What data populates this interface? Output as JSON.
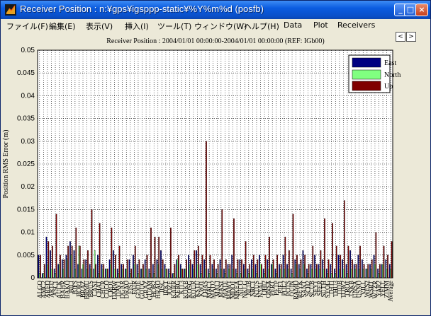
{
  "window": {
    "title": "Receiver Position : n:¥gps¥igsppp-static¥%Y%m%d (posfb)",
    "controls": {
      "minimize": "_",
      "maximize": "□",
      "close": "×"
    }
  },
  "menu": [
    {
      "label": "ファイル(F)"
    },
    {
      "label": "編集(E)"
    },
    {
      "label": "表示(V)"
    },
    {
      "label": "挿入(I)"
    },
    {
      "label": "ツール(T)"
    },
    {
      "label": "ウィンドウ(W)"
    },
    {
      "label": "ヘルプ(H)"
    },
    {
      "label": "Data"
    },
    {
      "label": "Plot"
    },
    {
      "label": "Receivers"
    }
  ],
  "nav": {
    "prev": "<",
    "next": ">"
  },
  "chart_data": {
    "type": "bar",
    "title": "Receiver Position : 2004/01/01 00:00:00-2004/01/01 00:00:00 (REF: IGb00)",
    "ylabel": "Position RMS Error (m)",
    "xlabel": "",
    "ylim": [
      0,
      0.05
    ],
    "yticks": [
      "0",
      "0.005",
      "0.01",
      "0.015",
      "0.02",
      "0.025",
      "0.03",
      "0.035",
      "0.04",
      "0.045",
      "0.05"
    ],
    "grid": true,
    "legend_position": "top-right",
    "categories": [
      "ALGO",
      "AMC2",
      "AREQ",
      "ARTU",
      "ASC1",
      "AUCK",
      "BAHR",
      "BAKO",
      "BILI",
      "BJFS",
      "BOR1",
      "BRAZ",
      "BRMU",
      "BRUS",
      "CAS1",
      "CHAT",
      "CHUR",
      "COCO",
      "CRO1",
      "DARW",
      "DAV1",
      "DGAR",
      "DRAO",
      "EISL",
      "FAIR",
      "GODE",
      "GOUG",
      "GRAZ",
      "GUAM",
      "HOB2",
      "HRAO",
      "IISC",
      "IRKT",
      "JOZE",
      "KARR",
      "KERG",
      "KIT3",
      "KOKB",
      "KOSG",
      "KOUR",
      "KSTU",
      "KWJ1",
      "LHAS",
      "MAC1",
      "MAD2",
      "MALI",
      "MAS1",
      "MATE",
      "MAW1",
      "MDO1",
      "MKEA",
      "NICO",
      "NKLG",
      "NLIB",
      "NRC1",
      "NTUS",
      "NYAL",
      "OHI2",
      "ONSA",
      "PERT",
      "PETP",
      "PIE1",
      "POL2",
      "POTS",
      "QUIN",
      "RAMO",
      "REYK",
      "SANT",
      "SCH2",
      "SCUB",
      "SEY1",
      "SFER",
      "SUTH",
      "SYOG",
      "THTI",
      "THU3",
      "TIDB",
      "TOW2",
      "TRO1",
      "TSKB",
      "UNSA",
      "USNO",
      "VILL",
      "WES2",
      "WSRT",
      "WTZR",
      "YAR2",
      "YELL",
      "ZIMM",
      "Average"
    ],
    "series": [
      {
        "name": "East",
        "color": "#000080",
        "values": [
          0.005,
          0.001,
          0.009,
          0.006,
          0.002,
          0.003,
          0.004,
          0.005,
          0.008,
          0.006,
          0.003,
          0.002,
          0.004,
          0.003,
          0.002,
          0.005,
          0.003,
          0.002,
          0.004,
          0.006,
          0.002,
          0.003,
          0.002,
          0.004,
          0.005,
          0.003,
          0.002,
          0.004,
          0.002,
          0.003,
          0.004,
          0.006,
          0.003,
          0.002,
          0.001,
          0.004,
          0.003,
          0.002,
          0.005,
          0.003,
          0.006,
          0.003,
          0.004,
          0.002,
          0.003,
          0.002,
          0.004,
          0.002,
          0.003,
          0.005,
          0.002,
          0.004,
          0.003,
          0.002,
          0.004,
          0.003,
          0.005,
          0.002,
          0.004,
          0.003,
          0.002,
          0.003,
          0.005,
          0.003,
          0.002,
          0.004,
          0.003,
          0.006,
          0.002,
          0.003,
          0.005,
          0.003,
          0.004,
          0.002,
          0.003,
          0.002,
          0.005,
          0.004,
          0.003,
          0.006,
          0.003,
          0.005,
          0.004,
          0.002,
          0.003,
          0.005,
          0.002,
          0.003,
          0.004,
          0.003
        ]
      },
      {
        "name": "North",
        "color": "#80ff80",
        "values": [
          0.001,
          0.001,
          0.003,
          0.002,
          0.001,
          0.003,
          0.002,
          0.004,
          0.005,
          0.002,
          0.007,
          0.003,
          0.002,
          0.002,
          0.006,
          0.001,
          0.002,
          0.002,
          0.003,
          0.002,
          0.001,
          0.002,
          0.002,
          0.001,
          0.003,
          0.001,
          0.002,
          0.002,
          0.001,
          0.001,
          0.003,
          0.002,
          0.002,
          0.001,
          0.001,
          0.004,
          0.002,
          0.002,
          0.003,
          0.002,
          0.003,
          0.001,
          0.002,
          0.001,
          0.002,
          0.001,
          0.002,
          0.001,
          0.002,
          0.002,
          0.001,
          0.001,
          0.002,
          0.001,
          0.002,
          0.001,
          0.003,
          0.001,
          0.002,
          0.003,
          0.001,
          0.002,
          0.002,
          0.002,
          0.001,
          0.003,
          0.002,
          0.003,
          0.001,
          0.002,
          0.002,
          0.002,
          0.002,
          0.001,
          0.001,
          0.001,
          0.002,
          0.002,
          0.001,
          0.002,
          0.002,
          0.002,
          0.002,
          0.002,
          0.002,
          0.003,
          0.001,
          0.003,
          0.002,
          0.002
        ]
      },
      {
        "name": "Up",
        "color": "#800000",
        "values": [
          0.005,
          0.003,
          0.008,
          0.007,
          0.014,
          0.005,
          0.004,
          0.007,
          0.007,
          0.011,
          0.007,
          0.004,
          0.006,
          0.015,
          0.003,
          0.012,
          0.003,
          0.002,
          0.011,
          0.005,
          0.007,
          0.003,
          0.004,
          0.002,
          0.007,
          0.004,
          0.003,
          0.005,
          0.011,
          0.009,
          0.009,
          0.004,
          0.002,
          0.011,
          0.003,
          0.005,
          0.002,
          0.004,
          0.004,
          0.006,
          0.007,
          0.005,
          0.03,
          0.005,
          0.004,
          0.003,
          0.015,
          0.004,
          0.003,
          0.013,
          0.004,
          0.004,
          0.008,
          0.003,
          0.005,
          0.004,
          0.003,
          0.005,
          0.009,
          0.004,
          0.005,
          0.003,
          0.009,
          0.006,
          0.014,
          0.005,
          0.004,
          0.005,
          0.003,
          0.007,
          0.003,
          0.006,
          0.013,
          0.004,
          0.012,
          0.007,
          0.005,
          0.017,
          0.007,
          0.004,
          0.003,
          0.007,
          0.003,
          0.003,
          0.004,
          0.01,
          0.003,
          0.007,
          0.005,
          0.008
        ]
      }
    ]
  }
}
